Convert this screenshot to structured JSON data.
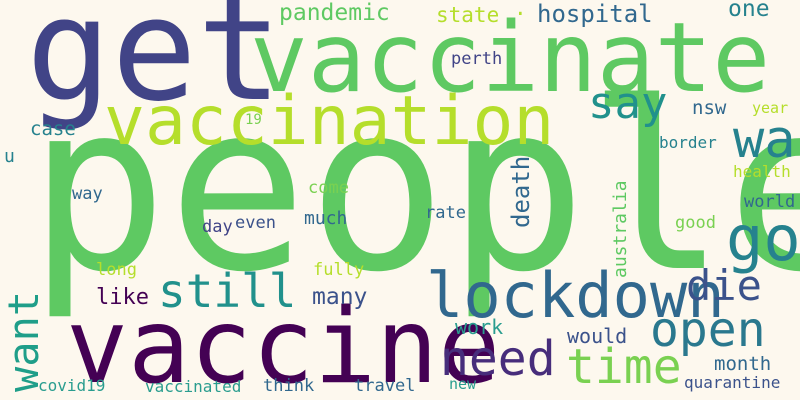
{
  "background": "#fdf8ee",
  "words": [
    {
      "text": "people",
      "color": "#5ec962"
    },
    {
      "text": "get",
      "color": "#414487"
    },
    {
      "text": "vaccinate",
      "color": "#5ec962"
    },
    {
      "text": "vaccine",
      "color": "#440154"
    },
    {
      "text": "vaccination",
      "color": "#b5de2b"
    },
    {
      "text": "lockdown",
      "color": "#31688e"
    },
    {
      "text": "go",
      "color": "#26828e"
    },
    {
      "text": "wa",
      "color": "#26828e"
    },
    {
      "text": "say",
      "color": "#21918c"
    },
    {
      "text": "still",
      "color": "#21918c"
    },
    {
      "text": "need",
      "color": "#472d7b"
    },
    {
      "text": "time",
      "color": "#7ad151"
    },
    {
      "text": "open",
      "color": "#2a788e"
    },
    {
      "text": "die",
      "color": "#3b528b"
    },
    {
      "text": "want",
      "color": "#1f9e89"
    },
    {
      "text": "many",
      "color": "#3b528b"
    },
    {
      "text": "like",
      "color": "#440154"
    },
    {
      "text": "pandemic",
      "color": "#5ec962"
    },
    {
      "text": "state",
      "color": "#b5de2b"
    },
    {
      "text": "hospital",
      "color": "#31688e"
    },
    {
      "text": "one",
      "color": "#26828e"
    },
    {
      "text": "perth",
      "color": "#414487"
    },
    {
      "text": "case",
      "color": "#26828e"
    },
    {
      "text": "19",
      "color": "#7ad151"
    },
    {
      "text": "death",
      "color": "#31688e"
    },
    {
      "text": "australia",
      "color": "#5ec962"
    },
    {
      "text": "nsw",
      "color": "#31688e"
    },
    {
      "text": "year",
      "color": "#b5de2b"
    },
    {
      "text": "border",
      "color": "#26828e"
    },
    {
      "text": "health",
      "color": "#b5de2b"
    },
    {
      "text": "world",
      "color": "#31688e"
    },
    {
      "text": "u",
      "color": "#26828e"
    },
    {
      "text": "way",
      "color": "#31688e"
    },
    {
      "text": "come",
      "color": "#7ad151"
    },
    {
      "text": "much",
      "color": "#31688e"
    },
    {
      "text": "day",
      "color": "#414487"
    },
    {
      "text": "even",
      "color": "#3b528b"
    },
    {
      "text": "rate",
      "color": "#31688e"
    },
    {
      "text": "good",
      "color": "#7ad151"
    },
    {
      "text": "long",
      "color": "#b5de2b"
    },
    {
      "text": "fully",
      "color": "#b5de2b"
    },
    {
      "text": "work",
      "color": "#2a9d8f"
    },
    {
      "text": "would",
      "color": "#3b528b"
    },
    {
      "text": "month",
      "color": "#31688e"
    },
    {
      "text": "covid19",
      "color": "#2a9d8f"
    },
    {
      "text": "vaccinated",
      "color": "#2a9d8f"
    },
    {
      "text": "think",
      "color": "#31688e"
    },
    {
      "text": "travel",
      "color": "#31688e"
    },
    {
      "text": "new",
      "color": "#2a9d8f"
    },
    {
      "text": "quarantine",
      "color": "#3b528b"
    }
  ]
}
